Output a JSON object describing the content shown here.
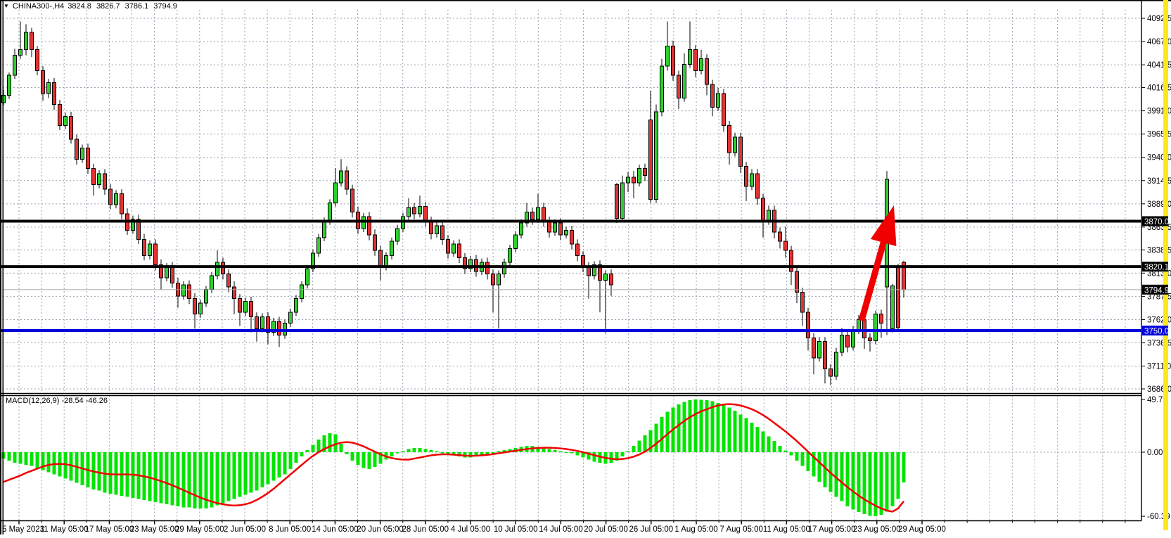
{
  "window": {
    "dropdown_icon": "▼",
    "symbol_period": "CHINA300-,H4",
    "open": "3824.8",
    "high": "3826.7",
    "low": "3786.1",
    "close": "3794.9"
  },
  "macd_panel": {
    "label": "MACD(12,26,9)",
    "main_value": "-28.54",
    "signal_value": "-46.26"
  },
  "colors": {
    "bull": "#2fce2f",
    "bear": "#e03232",
    "outline": "#000000",
    "grid": "#98a2b0",
    "macd_hist": "#00e400",
    "macd_signal": "#f00000",
    "level_black": "#000000",
    "level_blue": "#0000dd",
    "current_line": "#a8a8a8",
    "arrow": "#f00000",
    "tag_text": "#ffffff",
    "scroll_strip": "#ffe81a",
    "border": "#000000"
  },
  "levels": [
    {
      "label": "3870.0",
      "value": 3870.0,
      "color": "#000000",
      "thickness": 4
    },
    {
      "label": "3820.1",
      "value": 3820.1,
      "color": "#000000",
      "thickness": 4
    },
    {
      "label": "3750.0",
      "value": 3750.0,
      "color": "#0000dd",
      "thickness": 4
    }
  ],
  "current_price": {
    "label": "3794.9",
    "value": 3794.9
  },
  "annotations": {
    "arrow_up": {
      "color": "#f00000",
      "from": [
        1225,
        456
      ],
      "to": [
        1271,
        292
      ]
    }
  },
  "chart_data": {
    "type": "candlestick",
    "title": "CHINA300-,H4",
    "symbol": "CHINA300-",
    "timeframe": "H4",
    "y_axis_ticks": [
      "4092.5",
      "4067.0",
      "4041.5",
      "4016.5",
      "3991.0",
      "3965.5",
      "3940.0",
      "3914.5",
      "3889.0",
      "3863.5",
      "3838.5",
      "3813.0",
      "3787.5",
      "3762.0",
      "3736.5",
      "3711.0",
      "3686.0"
    ],
    "y_range": [
      3686.0,
      4092.5
    ],
    "x_labels": [
      "5 May 2023",
      "11 May 05:00",
      "17 May 05:00",
      "23 May 05:00",
      "29 May 05:00",
      "2 Jun 05:00",
      "8 Jun 05:00",
      "14 Jun 05:00",
      "20 Jun 05:00",
      "28 Jun 05:00",
      "4 Jul 05:00",
      "10 Jul 05:00",
      "14 Jul 05:00",
      "20 Jul 05:00",
      "26 Jul 05:00",
      "1 Aug 05:00",
      "7 Aug 05:00",
      "11 Aug 05:00",
      "17 Aug 05:00",
      "23 Aug 05:00",
      "29 Aug 05:00"
    ],
    "grid": true,
    "legend_position": "none",
    "candles": [
      [
        4000,
        4014,
        3997,
        4008
      ],
      [
        4008,
        4033,
        4004,
        4030
      ],
      [
        4030,
        4059,
        4026,
        4052
      ],
      [
        4052,
        4089,
        4048,
        4058
      ],
      [
        4058,
        4086,
        4052,
        4077
      ],
      [
        4077,
        4082,
        4050,
        4058
      ],
      [
        4058,
        4062,
        4030,
        4035
      ],
      [
        4035,
        4040,
        4002,
        4010
      ],
      [
        4010,
        4026,
        4005,
        4022
      ],
      [
        4022,
        4027,
        3992,
        3998
      ],
      [
        3998,
        4003,
        3970,
        3975
      ],
      [
        3975,
        3989,
        3971,
        3985
      ],
      [
        3985,
        3990,
        3955,
        3960
      ],
      [
        3960,
        3965,
        3932,
        3938
      ],
      [
        3938,
        3954,
        3934,
        3950
      ],
      [
        3950,
        3955,
        3922,
        3928
      ],
      [
        3928,
        3933,
        3898,
        3910
      ],
      [
        3910,
        3926,
        3906,
        3922
      ],
      [
        3922,
        3927,
        3899,
        3905
      ],
      [
        3905,
        3911,
        3883,
        3888
      ],
      [
        3888,
        3904,
        3884,
        3900
      ],
      [
        3900,
        3905,
        3872,
        3878
      ],
      [
        3878,
        3884,
        3855,
        3860
      ],
      [
        3860,
        3876,
        3856,
        3872
      ],
      [
        3872,
        3877,
        3845,
        3850
      ],
      [
        3850,
        3856,
        3827,
        3832
      ],
      [
        3832,
        3849,
        3828,
        3845
      ],
      [
        3845,
        3850,
        3816,
        3822
      ],
      [
        3822,
        3828,
        3795,
        3808
      ],
      [
        3808,
        3824,
        3804,
        3820
      ],
      [
        3820,
        3825,
        3797,
        3802
      ],
      [
        3802,
        3808,
        3775,
        3788
      ],
      [
        3788,
        3804,
        3784,
        3800
      ],
      [
        3800,
        3805,
        3779,
        3785
      ],
      [
        3785,
        3791,
        3752,
        3768
      ],
      [
        3768,
        3784,
        3764,
        3780
      ],
      [
        3780,
        3799,
        3776,
        3795
      ],
      [
        3795,
        3814,
        3791,
        3810
      ],
      [
        3810,
        3838,
        3806,
        3825
      ],
      [
        3825,
        3830,
        3806,
        3812
      ],
      [
        3812,
        3817,
        3792,
        3798
      ],
      [
        3798,
        3804,
        3768,
        3785
      ],
      [
        3785,
        3790,
        3755,
        3770
      ],
      [
        3770,
        3786,
        3766,
        3782
      ],
      [
        3782,
        3787,
        3748,
        3765
      ],
      [
        3765,
        3770,
        3738,
        3752
      ],
      [
        3752,
        3769,
        3748,
        3765
      ],
      [
        3765,
        3770,
        3735,
        3748
      ],
      [
        3748,
        3764,
        3744,
        3760
      ],
      [
        3760,
        3765,
        3732,
        3745
      ],
      [
        3745,
        3762,
        3741,
        3758
      ],
      [
        3758,
        3774,
        3754,
        3770
      ],
      [
        3770,
        3789,
        3766,
        3785
      ],
      [
        3785,
        3804,
        3781,
        3800
      ],
      [
        3800,
        3822,
        3796,
        3818
      ],
      [
        3818,
        3839,
        3814,
        3835
      ],
      [
        3835,
        3856,
        3831,
        3852
      ],
      [
        3852,
        3874,
        3848,
        3870
      ],
      [
        3870,
        3894,
        3866,
        3890
      ],
      [
        3890,
        3928,
        3886,
        3912
      ],
      [
        3912,
        3938,
        3908,
        3925
      ],
      [
        3925,
        3930,
        3899,
        3905
      ],
      [
        3905,
        3910,
        3874,
        3880
      ],
      [
        3880,
        3886,
        3856,
        3862
      ],
      [
        3862,
        3879,
        3858,
        3875
      ],
      [
        3875,
        3880,
        3849,
        3855
      ],
      [
        3855,
        3861,
        3832,
        3838
      ],
      [
        3838,
        3843,
        3805,
        3820
      ],
      [
        3820,
        3836,
        3816,
        3832
      ],
      [
        3832,
        3852,
        3828,
        3848
      ],
      [
        3848,
        3866,
        3844,
        3862
      ],
      [
        3862,
        3879,
        3858,
        3875
      ],
      [
        3875,
        3895,
        3871,
        3885
      ],
      [
        3885,
        3890,
        3872,
        3878
      ],
      [
        3878,
        3898,
        3874,
        3886
      ],
      [
        3886,
        3891,
        3864,
        3870
      ],
      [
        3870,
        3875,
        3850,
        3856
      ],
      [
        3856,
        3869,
        3852,
        3865
      ],
      [
        3865,
        3870,
        3844,
        3850
      ],
      [
        3850,
        3855,
        3829,
        3835
      ],
      [
        3835,
        3849,
        3831,
        3845
      ],
      [
        3845,
        3850,
        3824,
        3830
      ],
      [
        3830,
        3835,
        3812,
        3818
      ],
      [
        3818,
        3832,
        3814,
        3828
      ],
      [
        3828,
        3833,
        3809,
        3815
      ],
      [
        3815,
        3829,
        3811,
        3825
      ],
      [
        3825,
        3830,
        3806,
        3812
      ],
      [
        3812,
        3817,
        3770,
        3800
      ],
      [
        3800,
        3816,
        3752,
        3812
      ],
      [
        3812,
        3829,
        3808,
        3825
      ],
      [
        3825,
        3844,
        3821,
        3840
      ],
      [
        3840,
        3859,
        3836,
        3855
      ],
      [
        3855,
        3872,
        3851,
        3868
      ],
      [
        3868,
        3890,
        3864,
        3880
      ],
      [
        3880,
        3885,
        3866,
        3872
      ],
      [
        3872,
        3900,
        3868,
        3885
      ],
      [
        3885,
        3890,
        3864,
        3870
      ],
      [
        3870,
        3875,
        3852,
        3858
      ],
      [
        3858,
        3872,
        3854,
        3868
      ],
      [
        3868,
        3873,
        3849,
        3855
      ],
      [
        3855,
        3864,
        3851,
        3860
      ],
      [
        3860,
        3865,
        3839,
        3845
      ],
      [
        3845,
        3850,
        3826,
        3832
      ],
      [
        3832,
        3837,
        3814,
        3820
      ],
      [
        3820,
        3825,
        3785,
        3810
      ],
      [
        3810,
        3826,
        3806,
        3822
      ],
      [
        3822,
        3827,
        3770,
        3805
      ],
      [
        3805,
        3816,
        3747,
        3812
      ],
      [
        3812,
        3817,
        3788,
        3800
      ],
      [
        3910,
        3912,
        3868,
        3873
      ],
      [
        3873,
        3920,
        3869,
        3912
      ],
      [
        3912,
        3924,
        3902,
        3918
      ],
      [
        3918,
        3925,
        3895,
        3912
      ],
      [
        3912,
        3932,
        3908,
        3928
      ],
      [
        3928,
        3933,
        3914,
        3920
      ],
      [
        3981,
        4013,
        3890,
        3894
      ],
      [
        3894,
        3998,
        3890,
        3990
      ],
      [
        3990,
        4048,
        3985,
        4040
      ],
      [
        4040,
        4089,
        4035,
        4062
      ],
      [
        4062,
        4068,
        4024,
        4030
      ],
      [
        4030,
        4035,
        3993,
        4005
      ],
      [
        4005,
        4054,
        4001,
        4042
      ],
      [
        4042,
        4089,
        4038,
        4058
      ],
      [
        4058,
        4063,
        4028,
        4035
      ],
      [
        4035,
        4058,
        4031,
        4048
      ],
      [
        4048,
        4053,
        4008,
        4020
      ],
      [
        4020,
        4025,
        3985,
        3995
      ],
      [
        3995,
        4016,
        3991,
        4010
      ],
      [
        4010,
        4015,
        3968,
        3975
      ],
      [
        3975,
        3980,
        3932,
        3945
      ],
      [
        3945,
        3967,
        3941,
        3962
      ],
      [
        3962,
        3967,
        3923,
        3930
      ],
      [
        3930,
        3935,
        3892,
        3908
      ],
      [
        3908,
        3927,
        3904,
        3922
      ],
      [
        3922,
        3927,
        3888,
        3895
      ],
      [
        3895,
        3900,
        3852,
        3870
      ],
      [
        3870,
        3887,
        3866,
        3882
      ],
      [
        3882,
        3887,
        3851,
        3858
      ],
      [
        3858,
        3863,
        3840,
        3848
      ],
      [
        3848,
        3864,
        3830,
        3838
      ],
      [
        3838,
        3843,
        3800,
        3815
      ],
      [
        3815,
        3820,
        3780,
        3792
      ],
      [
        3792,
        3797,
        3755,
        3770
      ],
      [
        3770,
        3775,
        3728,
        3742
      ],
      [
        3742,
        3747,
        3702,
        3720
      ],
      [
        3720,
        3743,
        3716,
        3738
      ],
      [
        3738,
        3743,
        3692,
        3708
      ],
      [
        3708,
        3713,
        3690,
        3700
      ],
      [
        3700,
        3731,
        3696,
        3726
      ],
      [
        3726,
        3753,
        3722,
        3745
      ],
      [
        3745,
        3750,
        3726,
        3732
      ],
      [
        3732,
        3755,
        3728,
        3750
      ],
      [
        3750,
        3767,
        3746,
        3762
      ],
      [
        3762,
        3767,
        3730,
        3742
      ],
      [
        3742,
        3747,
        3727,
        3739
      ],
      [
        3739,
        3772,
        3735,
        3768
      ],
      [
        3768,
        3773,
        3742,
        3758
      ],
      [
        3798,
        3925,
        3745,
        3916
      ],
      [
        3752,
        3801,
        3748,
        3799
      ],
      [
        3821,
        3823,
        3750,
        3753
      ],
      [
        3824.8,
        3826.7,
        3786.1,
        3794.9
      ]
    ],
    "macd": {
      "label": "MACD(12,26,9)",
      "axis_ticks": [
        "49.72",
        "0.00",
        "-60.39"
      ],
      "range": [
        -60.39,
        49.72
      ],
      "histogram": [
        -6,
        -8,
        -10,
        -11,
        -12,
        -13,
        -15,
        -17,
        -19,
        -21,
        -23,
        -25,
        -27,
        -29,
        -31,
        -33,
        -35,
        -36,
        -38,
        -39,
        -40,
        -41,
        -42,
        -43,
        -44,
        -45,
        -46,
        -47,
        -48,
        -49,
        -50,
        -51,
        -52,
        -52,
        -53,
        -53,
        -53,
        -52,
        -50,
        -48,
        -46,
        -44,
        -42,
        -40,
        -38,
        -36,
        -33,
        -30,
        -27,
        -24,
        -21,
        -16,
        -10,
        -4,
        2,
        7,
        12,
        16,
        18,
        17,
        8,
        -2,
        -8,
        -12,
        -15,
        -16,
        -14,
        -11,
        -7,
        -4,
        -1,
        1,
        3,
        4,
        4,
        3,
        2,
        1,
        -1,
        -2,
        -3,
        -4,
        -5,
        -5,
        -4,
        -3,
        -2,
        -1,
        1,
        2,
        3,
        4,
        5,
        6,
        6,
        5,
        4,
        3,
        2,
        1,
        0,
        -1,
        -3,
        -5,
        -7,
        -9,
        -10,
        -11,
        -10,
        -8,
        -4,
        1,
        6,
        11,
        16,
        21,
        27,
        33,
        38,
        42,
        45,
        47.5,
        49,
        49.7,
        49.5,
        49,
        48,
        46.5,
        44.5,
        42,
        39,
        35.5,
        32,
        28,
        24,
        19.5,
        15,
        10.5,
        6,
        1.5,
        -3,
        -8,
        -13,
        -18,
        -23,
        -28,
        -33,
        -37.5,
        -42,
        -46,
        -51,
        -54,
        -56.5,
        -58.5,
        -60,
        -60.4,
        -59,
        -56,
        -51,
        -44,
        -28.5
      ],
      "signal": [
        -28,
        -26,
        -24,
        -22,
        -19.5,
        -17.5,
        -15.5,
        -13.5,
        -12,
        -11.2,
        -11,
        -11.3,
        -12.3,
        -13.8,
        -15.3,
        -16.8,
        -18.2,
        -19.3,
        -20.2,
        -20.8,
        -21,
        -21,
        -21,
        -21.2,
        -21.8,
        -22.8,
        -24,
        -25.5,
        -27.2,
        -29.2,
        -31.2,
        -33.5,
        -35.8,
        -38.2,
        -40.5,
        -42.8,
        -44.8,
        -46.5,
        -48,
        -49,
        -50,
        -50.3,
        -50,
        -49,
        -47.5,
        -45,
        -42,
        -38.5,
        -34.5,
        -30,
        -25.5,
        -21,
        -16.5,
        -12,
        -7.5,
        -3.5,
        0,
        3,
        5.5,
        7.5,
        9,
        9.5,
        9,
        7.5,
        5.5,
        3,
        0.5,
        -2,
        -4,
        -5.5,
        -6.5,
        -7,
        -7,
        -6,
        -5,
        -4,
        -3,
        -2.3,
        -2,
        -2,
        -2.3,
        -2.8,
        -3.2,
        -3.4,
        -3.3,
        -3,
        -2.5,
        -1.8,
        -1,
        -0.2,
        0.6,
        1.4,
        2.2,
        3,
        3.6,
        4,
        4.2,
        4.2,
        4,
        3.6,
        3,
        2.2,
        1.2,
        0,
        -1.4,
        -2.8,
        -4.2,
        -5.4,
        -6.2,
        -6.6,
        -6.4,
        -5.6,
        -4.2,
        -2.2,
        0.5,
        4,
        8,
        12.5,
        17,
        21.5,
        25.5,
        29.5,
        33,
        36,
        38.5,
        40.5,
        42.5,
        44,
        45,
        45.3,
        45,
        44,
        42.5,
        40.5,
        38,
        35,
        31.5,
        27.5,
        23.5,
        19.5,
        15,
        10.5,
        5.5,
        0.5,
        -4.5,
        -9.5,
        -14.5,
        -19.5,
        -24,
        -28.5,
        -33,
        -37,
        -41,
        -44.5,
        -47.5,
        -50.5,
        -53,
        -55,
        -56,
        -53,
        -46.26
      ]
    }
  }
}
